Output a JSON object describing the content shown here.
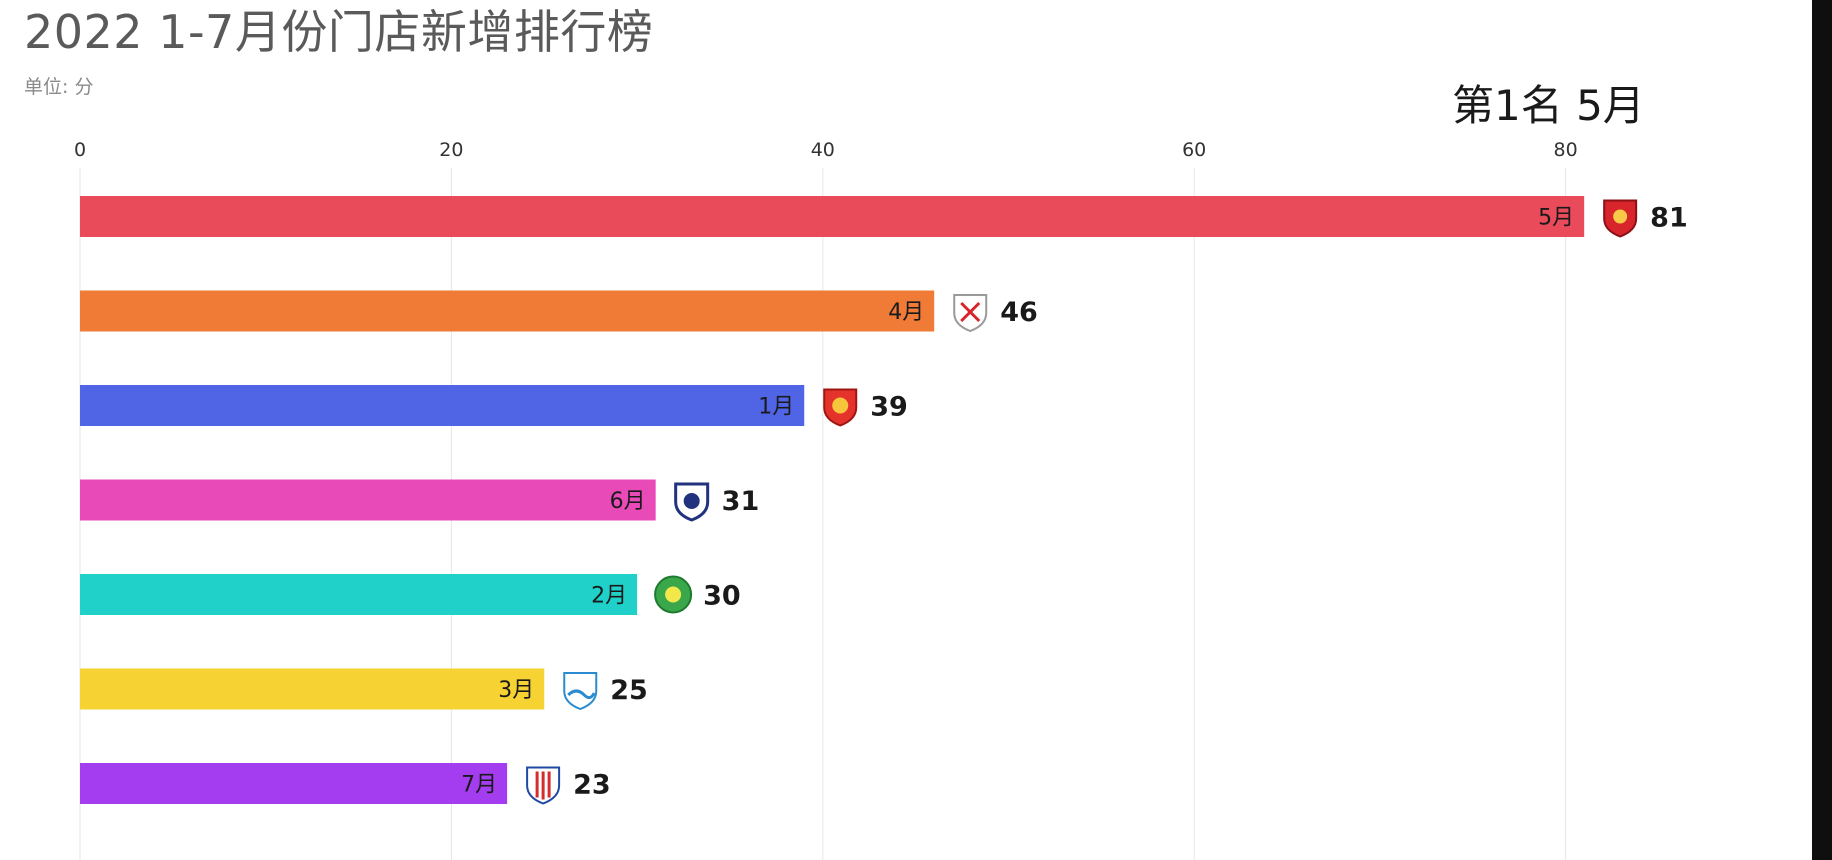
{
  "title": "2022 1-7月份门店新增排行榜",
  "unit": "单位: 分",
  "rank_label": "第1名 5月",
  "chart_data": {
    "type": "bar",
    "orientation": "horizontal",
    "categories": [
      "5月",
      "4月",
      "1月",
      "6月",
      "2月",
      "3月",
      "7月"
    ],
    "values": [
      81,
      46,
      39,
      31,
      30,
      25,
      23
    ],
    "colors": [
      "#e94b5b",
      "#ef7b36",
      "#5065e6",
      "#e84ab8",
      "#1fd1c9",
      "#f6d233",
      "#a43df0"
    ],
    "icons": [
      "red-shield-emblem-icon",
      "white-shield-emblem-icon",
      "red-lion-emblem-icon",
      "blue-shield-emblem-icon",
      "green-round-emblem-icon",
      "blue-wave-emblem-icon",
      "blue-stripe-emblem-icon"
    ],
    "xlim": [
      0,
      80
    ],
    "xticks": [
      "0",
      "20",
      "40",
      "60",
      "80"
    ],
    "title": "2022 1-7月份门店新增排行榜",
    "xlabel": "",
    "ylabel": "",
    "grid": true
  }
}
